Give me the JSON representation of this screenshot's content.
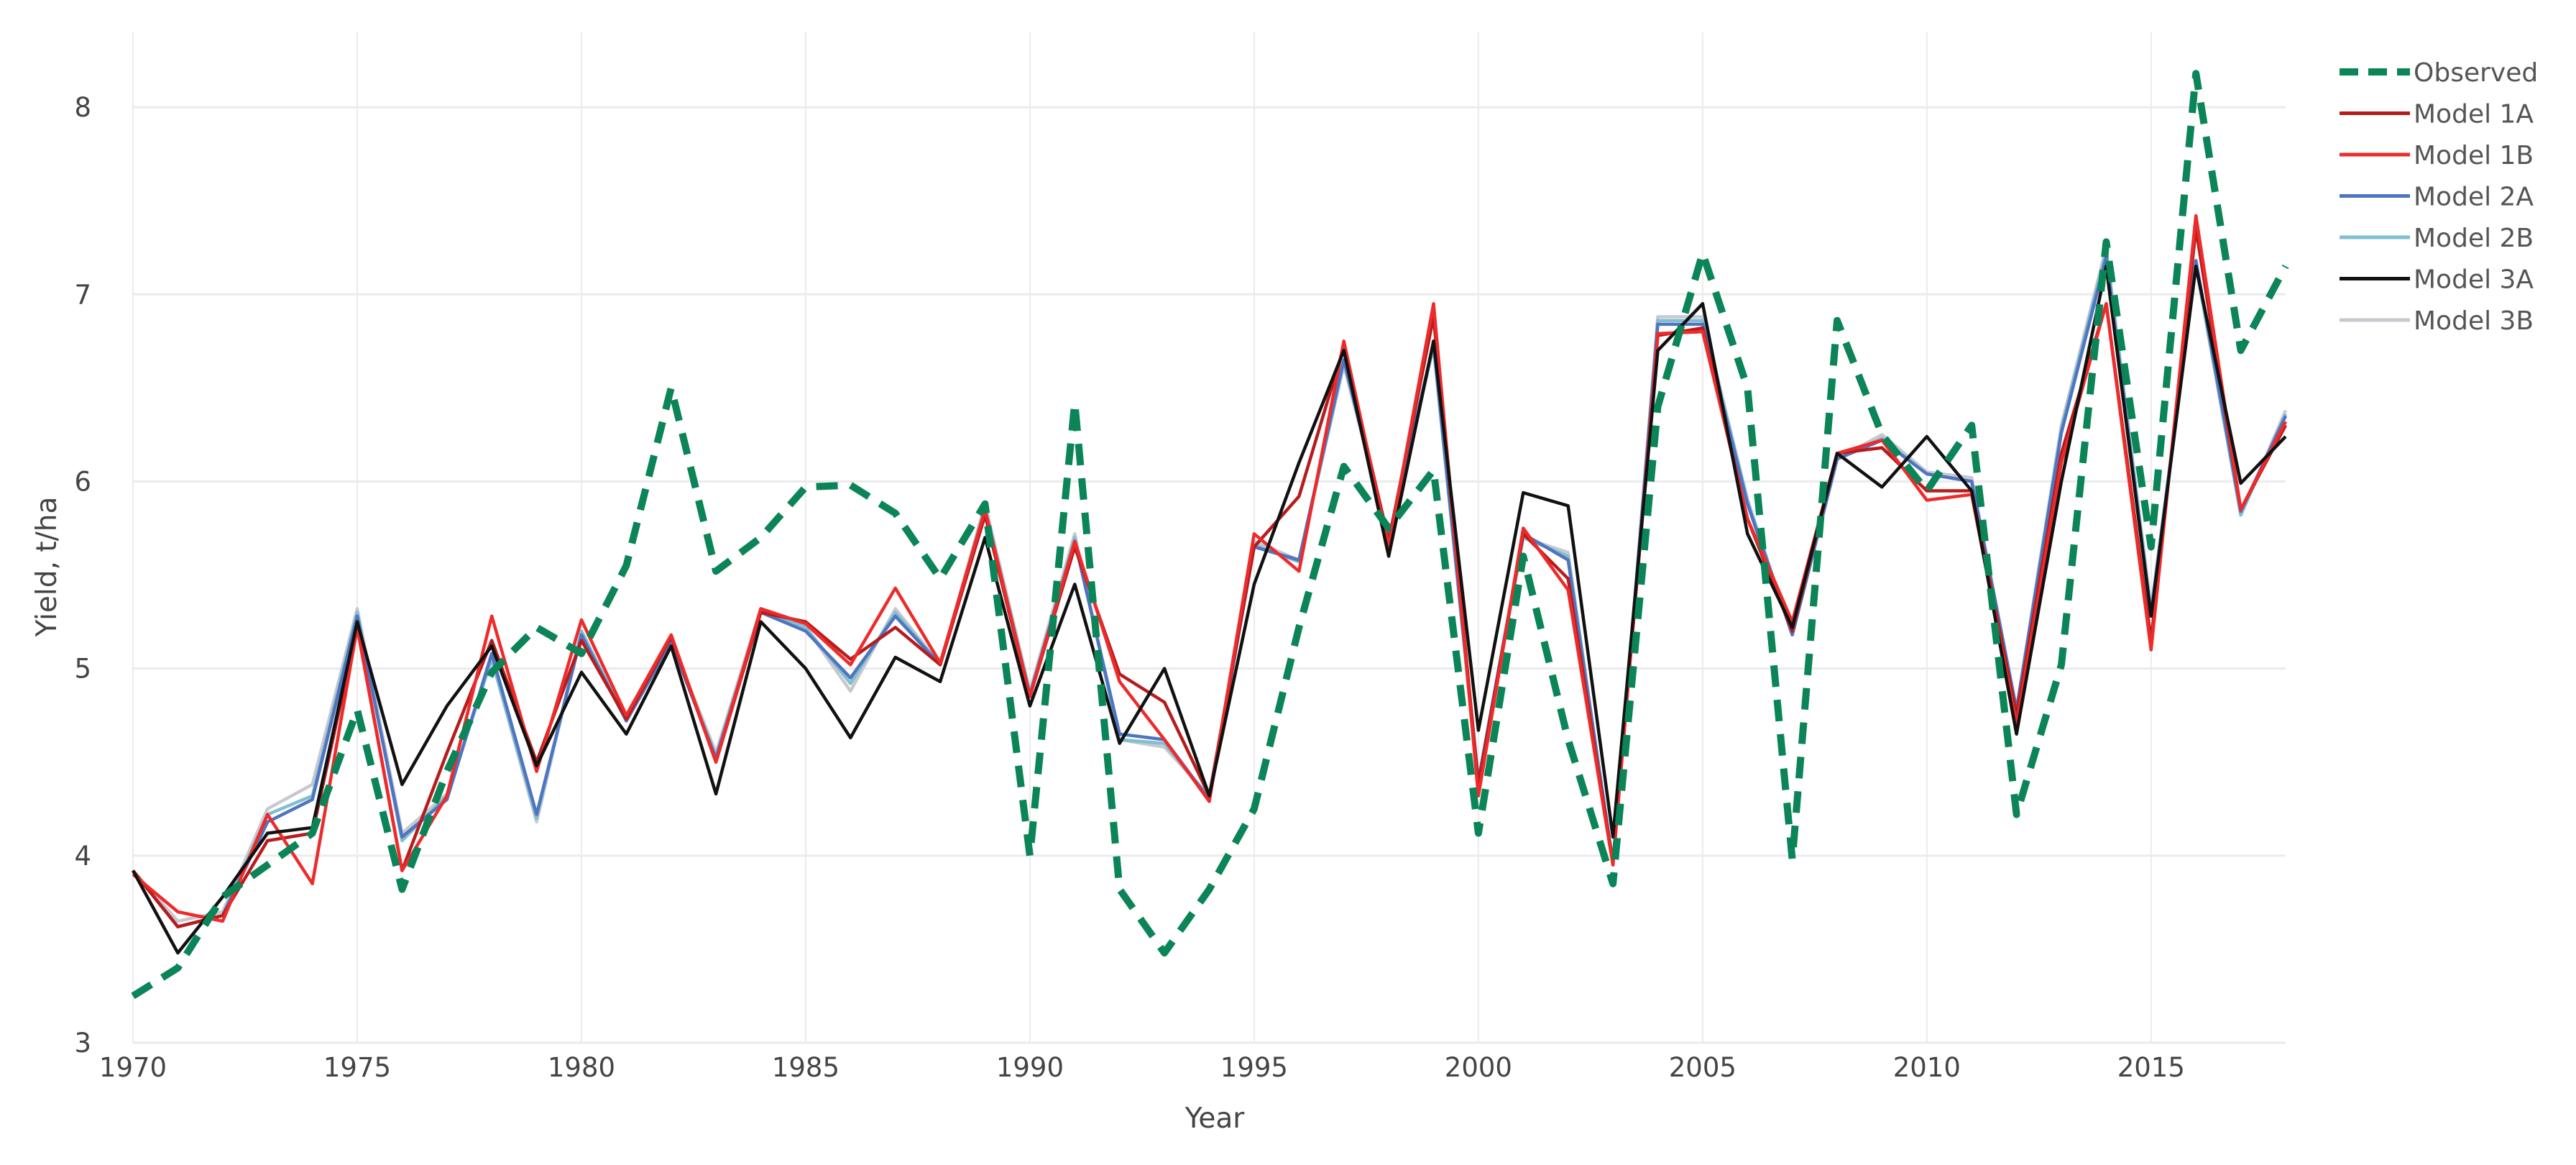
{
  "chart_data": {
    "type": "line",
    "title": "",
    "xlabel": "Year",
    "ylabel": "Yield, t/ha",
    "xlim": [
      1970,
      2018
    ],
    "ylim": [
      3,
      8.4
    ],
    "xticks": [
      1970,
      1975,
      1980,
      1985,
      1990,
      1995,
      2000,
      2005,
      2010,
      2015
    ],
    "yticks": [
      3,
      4,
      5,
      6,
      7,
      8
    ],
    "grid": true,
    "legend_position": "top-right-outside",
    "x": [
      1970,
      1971,
      1972,
      1973,
      1974,
      1975,
      1976,
      1977,
      1978,
      1979,
      1980,
      1981,
      1982,
      1983,
      1984,
      1985,
      1986,
      1987,
      1988,
      1989,
      1990,
      1991,
      1992,
      1993,
      1994,
      1995,
      1996,
      1997,
      1998,
      1999,
      2000,
      2001,
      2002,
      2003,
      2004,
      2005,
      2006,
      2007,
      2008,
      2009,
      2010,
      2011,
      2012,
      2013,
      2014,
      2015,
      2016,
      2017,
      2018
    ],
    "series": [
      {
        "name": "Model 3B",
        "color": "#c8c8d0",
        "dash": "solid",
        "values": [
          3.92,
          3.65,
          3.7,
          4.25,
          4.38,
          5.32,
          4.12,
          4.33,
          5.05,
          4.18,
          5.2,
          4.72,
          5.15,
          4.55,
          5.32,
          5.22,
          4.88,
          5.32,
          5.02,
          5.88,
          4.88,
          5.72,
          4.62,
          4.58,
          4.32,
          5.68,
          5.58,
          6.62,
          5.7,
          6.72,
          4.38,
          5.7,
          5.62,
          3.95,
          6.88,
          6.88,
          5.9,
          5.18,
          6.12,
          6.25,
          6.05,
          6.02,
          4.78,
          6.3,
          7.25,
          5.32,
          7.15,
          5.82,
          6.38
        ]
      },
      {
        "name": "Model 2B",
        "color": "#7fbfcf",
        "dash": "solid",
        "values": [
          3.92,
          3.62,
          3.68,
          4.22,
          4.32,
          5.3,
          4.08,
          4.32,
          5.05,
          4.2,
          5.2,
          4.72,
          5.15,
          4.53,
          5.31,
          5.22,
          4.92,
          5.3,
          5.02,
          5.86,
          4.86,
          5.7,
          4.62,
          4.6,
          4.31,
          5.66,
          5.57,
          6.64,
          5.7,
          6.72,
          4.38,
          5.7,
          5.6,
          3.96,
          6.86,
          6.86,
          5.9,
          5.18,
          6.12,
          6.23,
          6.04,
          6.0,
          4.78,
          6.28,
          7.23,
          5.3,
          7.16,
          5.82,
          6.36
        ]
      },
      {
        "name": "Model 2A",
        "color": "#4f74c0",
        "dash": "solid",
        "values": [
          3.92,
          3.62,
          3.68,
          4.18,
          4.3,
          5.28,
          4.1,
          4.3,
          5.08,
          4.22,
          5.18,
          4.72,
          5.14,
          4.52,
          5.3,
          5.2,
          4.95,
          5.28,
          5.02,
          5.84,
          4.86,
          5.68,
          4.65,
          4.62,
          4.3,
          5.65,
          5.58,
          6.65,
          5.68,
          6.74,
          4.4,
          5.72,
          5.58,
          3.96,
          6.84,
          6.84,
          5.88,
          5.18,
          6.12,
          6.22,
          6.04,
          6.0,
          4.78,
          6.26,
          7.2,
          5.28,
          7.18,
          5.84,
          6.35
        ]
      },
      {
        "name": "Model 1A",
        "color": "#b71c1c",
        "dash": "solid",
        "values": [
          3.92,
          3.62,
          3.68,
          4.08,
          4.12,
          5.22,
          3.92,
          4.55,
          5.15,
          4.5,
          5.15,
          4.73,
          5.17,
          4.5,
          5.3,
          5.25,
          5.05,
          5.22,
          5.02,
          5.82,
          4.85,
          5.65,
          4.97,
          4.82,
          4.32,
          5.65,
          5.92,
          6.72,
          5.68,
          6.88,
          4.38,
          5.72,
          5.48,
          3.96,
          6.78,
          6.82,
          5.8,
          5.2,
          6.15,
          6.18,
          5.95,
          5.95,
          4.75,
          6.15,
          6.95,
          5.15,
          7.35,
          5.85,
          6.3
        ]
      },
      {
        "name": "Model 1B",
        "color": "#ee2b2b",
        "dash": "solid",
        "values": [
          3.9,
          3.7,
          3.65,
          4.22,
          3.85,
          5.22,
          3.92,
          4.32,
          5.28,
          4.45,
          5.26,
          4.75,
          5.18,
          4.5,
          5.32,
          5.24,
          5.02,
          5.43,
          5.03,
          5.85,
          4.85,
          5.68,
          4.93,
          4.62,
          4.29,
          5.72,
          5.52,
          6.75,
          5.65,
          6.95,
          4.32,
          5.75,
          5.42,
          3.95,
          6.79,
          6.8,
          5.8,
          5.25,
          6.15,
          6.22,
          5.9,
          5.93,
          4.7,
          6.1,
          6.95,
          5.1,
          7.42,
          5.85,
          6.32
        ]
      },
      {
        "name": "Model 3A",
        "color": "#111111",
        "dash": "solid",
        "values": [
          3.92,
          3.48,
          3.78,
          4.12,
          4.15,
          5.25,
          4.38,
          4.8,
          5.12,
          4.48,
          4.98,
          4.65,
          5.12,
          4.33,
          5.25,
          5.0,
          4.63,
          5.06,
          4.93,
          5.7,
          4.8,
          5.45,
          4.6,
          5.0,
          4.32,
          5.45,
          6.1,
          6.7,
          5.6,
          6.75,
          4.67,
          5.94,
          5.87,
          4.1,
          6.7,
          6.95,
          5.72,
          5.22,
          6.15,
          5.97,
          6.24,
          5.95,
          4.65,
          6.0,
          7.15,
          5.28,
          7.15,
          5.99,
          6.24
        ]
      },
      {
        "name": "Observed",
        "color": "#0b8457",
        "dash": "dash",
        "values": [
          3.25,
          3.4,
          3.78,
          3.95,
          4.12,
          4.78,
          3.82,
          4.45,
          4.98,
          5.22,
          5.08,
          5.55,
          6.5,
          5.52,
          5.7,
          5.97,
          5.98,
          5.83,
          5.48,
          5.88,
          4.0,
          6.42,
          3.82,
          3.48,
          3.82,
          4.25,
          5.22,
          6.08,
          5.75,
          6.06,
          4.12,
          5.6,
          4.62,
          3.85,
          6.4,
          7.22,
          6.5,
          3.98,
          6.86,
          6.25,
          5.95,
          6.3,
          4.22,
          5.02,
          7.28,
          5.65,
          8.18,
          6.7,
          7.15
        ]
      }
    ],
    "legend_order": [
      "Observed",
      "Model 1A",
      "Model 1B",
      "Model 2A",
      "Model 2B",
      "Model 3A",
      "Model 3B"
    ]
  }
}
